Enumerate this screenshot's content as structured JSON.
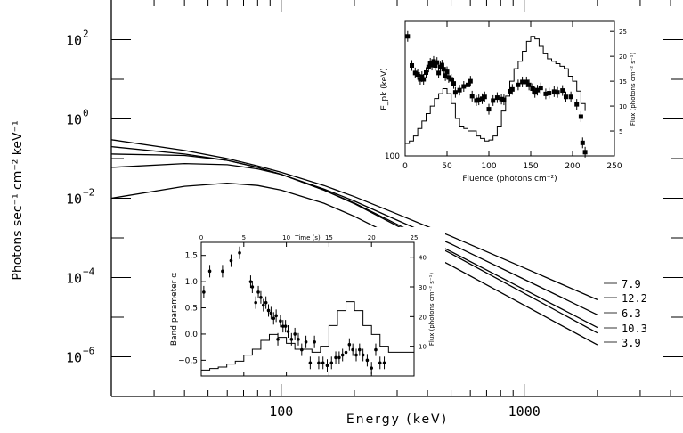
{
  "chart_data": [
    {
      "type": "line",
      "xlabel": "Energy (keV)",
      "ylabel": "Photons sec⁻¹ cm⁻² keV⁻¹",
      "xscale": "log",
      "yscale": "log",
      "xlim": [
        20,
        4500
      ],
      "ylim": [
        1e-07,
        1000.0
      ],
      "x_ticks": [
        100,
        1000
      ],
      "x_ticklabels": [
        "100",
        "1000"
      ],
      "y_ticks": [
        100.0,
        1,
        0.01,
        0.0001,
        1e-06
      ],
      "y_ticklabels": [
        {
          "base": "10",
          "exp": "2"
        },
        {
          "base": "10",
          "exp": "0"
        },
        {
          "base": "10",
          "exp": "−2"
        },
        {
          "base": "10",
          "exp": "−4"
        },
        {
          "base": "10",
          "exp": "−6"
        }
      ],
      "series": [
        {
          "name": "7.9",
          "x": [
            20,
            40,
            60,
            80,
            100,
            150,
            200,
            300,
            500,
            1000,
            2000
          ],
          "y": [
            0.3,
            0.16,
            0.1,
            0.065,
            0.045,
            0.021,
            0.011,
            0.004,
            0.0011,
            0.000175,
            2.75e-05
          ]
        },
        {
          "name": "12.2",
          "x": [
            20,
            40,
            60,
            80,
            100,
            150,
            200,
            300,
            500,
            1000,
            2000
          ],
          "y": [
            0.2,
            0.13,
            0.09,
            0.06,
            0.04,
            0.017,
            0.0085,
            0.0028,
            0.0007,
            9e-05,
            1.15e-05
          ]
        },
        {
          "name": "6.3",
          "x": [
            20,
            40,
            60,
            80,
            100,
            150,
            200,
            300,
            500,
            1000,
            2000
          ],
          "y": [
            0.13,
            0.12,
            0.09,
            0.06,
            0.04,
            0.016,
            0.0076,
            0.0022,
            0.00045,
            5e-05,
            5.5e-06
          ]
        },
        {
          "name": "10.3",
          "x": [
            20,
            40,
            60,
            80,
            100,
            150,
            200,
            300,
            500,
            1000,
            2000
          ],
          "y": [
            0.06,
            0.075,
            0.07,
            0.055,
            0.04,
            0.016,
            0.0073,
            0.002,
            0.0004,
            4e-05,
            4e-06
          ]
        },
        {
          "name": "3.9",
          "x": [
            20,
            40,
            60,
            80,
            100,
            150,
            200,
            300,
            500,
            1000,
            2000
          ],
          "y": [
            0.01,
            0.02,
            0.024,
            0.021,
            0.016,
            0.0075,
            0.0035,
            0.001,
            0.0002,
            2e-05,
            2e-06
          ]
        }
      ]
    },
    {
      "type": "scatter",
      "xlabel": "Fluence (photons cm⁻²)",
      "ylabel": "E_pk (keV)",
      "y2label": "Flux (photons cm⁻² s⁻¹)",
      "xlim": [
        0,
        250
      ],
      "ylim": [
        100,
        460
      ],
      "y2lim": [
        0,
        27
      ],
      "x_ticks": [
        0,
        50,
        100,
        150,
        200,
        250
      ],
      "y_ticks": [
        100
      ],
      "y2_ticks": [
        5,
        10,
        15,
        20,
        25
      ],
      "series": [
        {
          "name": "E_pk",
          "x": [
            3,
            8,
            12,
            15,
            18,
            20,
            22,
            25,
            28,
            30,
            32,
            34,
            36,
            38,
            40,
            42,
            44,
            46,
            48,
            50,
            52,
            55,
            58,
            60,
            65,
            70,
            75,
            78,
            80,
            85,
            88,
            92,
            95,
            100,
            105,
            110,
            115,
            118,
            125,
            128,
            135,
            140,
            145,
            148,
            152,
            155,
            158,
            162,
            168,
            172,
            178,
            182,
            188,
            192,
            198,
            205,
            210,
            212,
            215
          ],
          "y": [
            420,
            342,
            322,
            318,
            305,
            312,
            305,
            323,
            338,
            348,
            343,
            353,
            342,
            350,
            322,
            338,
            343,
            332,
            315,
            325,
            310,
            305,
            294,
            270,
            276,
            286,
            290,
            300,
            260,
            248,
            250,
            253,
            258,
            225,
            248,
            256,
            252,
            250,
            273,
            278,
            290,
            298,
            298,
            290,
            280,
            270,
            276,
            282,
            266,
            268,
            272,
            270,
            275,
            258,
            258,
            238,
            205,
            135,
            110
          ]
        },
        {
          "name": "Flux",
          "x": [
            0,
            5,
            10,
            15,
            20,
            25,
            30,
            35,
            40,
            45,
            50,
            55,
            60,
            65,
            70,
            75,
            80,
            85,
            90,
            95,
            100,
            105,
            110,
            115,
            120,
            125,
            130,
            135,
            140,
            145,
            150,
            155,
            160,
            165,
            170,
            175,
            180,
            185,
            190,
            195,
            200,
            205,
            210
          ],
          "y": [
            2.5,
            3.0,
            4.0,
            5.5,
            7.0,
            8.5,
            10.0,
            11.5,
            12.5,
            13.5,
            12.5,
            10.5,
            7.5,
            6.0,
            5.5,
            5.0,
            5.0,
            4.0,
            3.5,
            3.0,
            3.2,
            4.0,
            6.0,
            9.0,
            12.0,
            15.0,
            17.5,
            19.0,
            21.0,
            23.0,
            24.0,
            23.5,
            22.0,
            20.5,
            19.5,
            19.0,
            18.5,
            18.0,
            17.5,
            16.0,
            15.0,
            13.0,
            10.5
          ]
        }
      ]
    },
    {
      "type": "scatter",
      "xlabel": "Time (s)",
      "ylabel": "Band parameter α",
      "y2label": "Flux (photons cm⁻² s⁻¹)",
      "xlim": [
        0,
        25
      ],
      "ylim": [
        -0.8,
        1.75
      ],
      "y2lim": [
        0,
        45
      ],
      "x_ticks": [
        0,
        5,
        10,
        15,
        20,
        25
      ],
      "y_ticks": [
        -0.5,
        0.0,
        0.5,
        1.0,
        1.5
      ],
      "y_ticklabels": [
        "−0.5",
        "0.0",
        "0.5",
        "1.0",
        "1.5"
      ],
      "y2_ticks": [
        10,
        20,
        30,
        40
      ],
      "series": [
        {
          "name": "α",
          "x": [
            0.3,
            1.0,
            2.5,
            3.5,
            4.5,
            5.8,
            6.0,
            6.4,
            6.7,
            7.0,
            7.3,
            7.6,
            7.9,
            8.2,
            8.5,
            8.8,
            9.0,
            9.3,
            9.6,
            9.9,
            10.2,
            10.6,
            11.0,
            11.4,
            11.8,
            12.3,
            12.8,
            13.3,
            13.8,
            14.3,
            14.8,
            15.3,
            15.8,
            16.2,
            16.6,
            17.0,
            17.4,
            17.8,
            18.2,
            18.6,
            19.0,
            19.5,
            20.0,
            20.5,
            21.0,
            21.5
          ],
          "y": [
            0.8,
            1.2,
            1.2,
            1.4,
            1.55,
            1.0,
            0.9,
            0.6,
            0.8,
            0.7,
            0.55,
            0.6,
            0.45,
            0.4,
            0.3,
            0.35,
            -0.1,
            0.25,
            0.15,
            0.15,
            0.05,
            -0.1,
            0.0,
            -0.1,
            -0.3,
            -0.15,
            -0.55,
            -0.15,
            -0.55,
            -0.55,
            -0.6,
            -0.55,
            -0.45,
            -0.45,
            -0.4,
            -0.35,
            -0.2,
            -0.3,
            -0.4,
            -0.3,
            -0.4,
            -0.5,
            -0.65,
            -0.3,
            -0.55,
            -0.55
          ]
        },
        {
          "name": "Flux",
          "x": [
            0,
            1,
            2,
            3,
            4,
            5,
            6,
            7,
            8,
            9,
            10,
            11,
            12,
            13,
            14,
            15,
            16,
            17,
            18,
            19,
            20,
            21,
            22,
            23,
            24,
            25
          ],
          "y": [
            2,
            2.5,
            3,
            4,
            5,
            7,
            9,
            12,
            14,
            13,
            11,
            9,
            9,
            8,
            10,
            17,
            22,
            25,
            22,
            17,
            14,
            10,
            8,
            8,
            8,
            8
          ]
        }
      ]
    }
  ],
  "curve_labels": [
    "7.9",
    "12.2",
    "6.3",
    "10.3",
    "3.9"
  ]
}
